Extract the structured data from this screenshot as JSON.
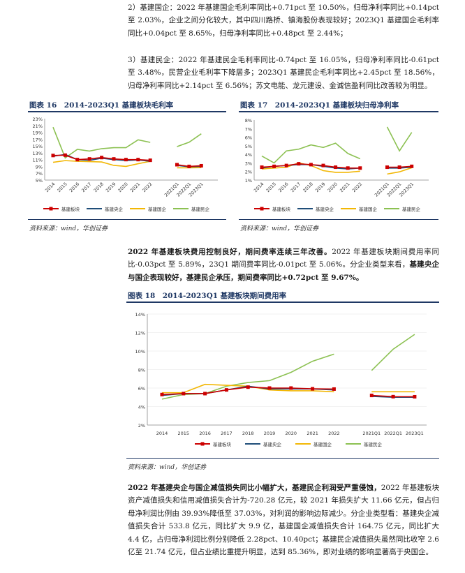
{
  "paragraphs": {
    "p1": "2）基建国企：2022 年基建国企毛利率同比+0.71pct 至 10.50%，归母净利率同比+0.14pct 至 2.03%，企业之间分化较大，其中四川路桥、镇海股份表现较好；2023Q1 基建国企毛利率同比+0.04pct 至 8.65%，归母净利率同比+0.48pct 至 2.44%；",
    "p2": "3）基建民企：2022 年基建民企毛利率同比-0.74pct 至 16.05%，归母净利率同比-0.61pct 至 3.48%，民营企业毛利率下降居多；2023Q1 基建民企毛利率同比+2.45pct 至 18.56%，归母净利率同比+2.14pct 至 6.56%；苏文电能、龙元建设、金诚信盈利同比改善较为明显。",
    "p3_bold": "2022 年基建板块费用控制良好，期间费率连续三年改善。",
    "p3_rest": "2022 年基建板块期间费用率同比-0.03pct 至 5.89%，23Q1 期间费率同比-0.01pct 至 5.06%。分企业类型来看，",
    "p3_bold2": "基建央企与国企表现较好，基建民企承压，期间费率同比+0.72pct 至 9.67%。",
    "p4_bold": "2022 年基建央企与国企减值损失同比小幅扩大，基建民企利润受严重侵蚀，",
    "p4_rest": "2022 年基建板块资产减值损失和信用减值损失合计为-720.28 亿元，较 2021 年损失扩大 11.66 亿元，但占归母净利润比例由 39.93%降低至 37.03%，对利润的影响边际减少。分企业类型看：基建央企减值损失合计 533.8 亿元，同比扩大 9.9 亿，基建国企减值损失合计 164.75 亿元，同比扩大 4.4 亿，占归母净利润比例分别降低 2.28pct、10.40pct；基建民企减值损失虽然同比收窄 2.6 亿至 21.74 亿元，但占业绩比重提升明显，达到 85.36%，即对业绩的影响显著高于央国企。"
  },
  "figures": {
    "f16_title": "图表 16　2014-2023Q1 基建板块毛利率",
    "f17_title": "图表 17　2014-2023Q1 基建板块归母净利率",
    "f18_title": "图表 18　2014-2023Q1 基建板块期间费用率",
    "source": "资料来源：wind，华创证券"
  },
  "colors": {
    "board": "#cc0000",
    "central": "#1f4e79",
    "state": "#f2b705",
    "private": "#8cc152",
    "title": "#1f3864"
  },
  "chart_data": [
    {
      "type": "line",
      "title": "图表 16　2014-2023Q1 基建板块毛利率",
      "categories": [
        "2014",
        "2015",
        "2016",
        "2017",
        "2018",
        "2019",
        "2020",
        "2021",
        "2022",
        "2021Q1",
        "2022Q1",
        "2023Q1"
      ],
      "ylim": [
        5,
        23
      ],
      "yticks": [
        "5%",
        "7%",
        "9%",
        "11%",
        "13%",
        "15%",
        "17%",
        "19%",
        "21%",
        "23%"
      ],
      "series": [
        {
          "name": "基建板块",
          "values": [
            12.2,
            12.3,
            11.0,
            11.2,
            11.6,
            11.2,
            11.0,
            11.0,
            10.8,
            9.5,
            9.0,
            9.2
          ]
        },
        {
          "name": "基建央企",
          "values": [
            12.0,
            12.5,
            11.0,
            10.8,
            11.4,
            11.0,
            10.7,
            10.9,
            10.5,
            9.3,
            8.9,
            9.0
          ]
        },
        {
          "name": "基建国企",
          "values": [
            10.2,
            10.7,
            10.5,
            10.4,
            10.3,
            9.3,
            9.0,
            9.8,
            10.5,
            8.6,
            8.6,
            8.65
          ]
        },
        {
          "name": "基建民企",
          "values": [
            20.5,
            11.5,
            14.0,
            13.5,
            14.2,
            14.5,
            14.5,
            16.8,
            16.05,
            14.8,
            16.1,
            18.56
          ]
        }
      ],
      "legend": [
        "基建板块",
        "基建央企",
        "基建国企",
        "基建民企"
      ]
    },
    {
      "type": "line",
      "title": "图表 17　2014-2023Q1 基建板块归母净利率",
      "categories": [
        "2014",
        "2015",
        "2016",
        "2017",
        "2018",
        "2019",
        "2020",
        "2021",
        "2022",
        "2021Q1",
        "2022Q1",
        "2023Q1"
      ],
      "ylim": [
        1,
        8
      ],
      "yticks": [
        "1%",
        "2%",
        "3%",
        "4%",
        "5%",
        "6%",
        "7%",
        "8%"
      ],
      "series": [
        {
          "name": "基建板块",
          "values": [
            2.5,
            2.6,
            2.7,
            2.9,
            2.8,
            2.7,
            2.5,
            2.4,
            2.4,
            2.5,
            2.5,
            2.6
          ]
        },
        {
          "name": "基建央企",
          "values": [
            2.4,
            2.6,
            2.7,
            2.8,
            2.8,
            2.6,
            2.4,
            2.3,
            2.4,
            2.4,
            2.4,
            2.5
          ]
        },
        {
          "name": "基建国企",
          "values": [
            2.3,
            2.4,
            2.5,
            3.0,
            2.7,
            2.1,
            1.9,
            1.9,
            2.03,
            1.7,
            1.96,
            2.44
          ]
        },
        {
          "name": "基建民企",
          "values": [
            3.8,
            3.0,
            4.4,
            4.6,
            5.1,
            4.8,
            5.3,
            4.1,
            3.48,
            7.2,
            4.4,
            6.56
          ]
        }
      ],
      "legend": [
        "基建板块",
        "基建央企",
        "基建国企",
        "基建民企"
      ]
    },
    {
      "type": "line",
      "title": "图表 18　2014-2023Q1 基建板块期间费用率",
      "categories": [
        "2014",
        "2015",
        "2016",
        "2017",
        "2018",
        "2019",
        "2020",
        "2021",
        "2022",
        "2021Q1",
        "2022Q1",
        "2023Q1"
      ],
      "ylim": [
        2,
        14
      ],
      "yticks": [
        "2%",
        "4%",
        "6%",
        "8%",
        "10%",
        "12%",
        "14%"
      ],
      "series": [
        {
          "name": "基建板块",
          "values": [
            5.3,
            5.4,
            5.4,
            5.8,
            6.1,
            6.0,
            6.0,
            5.92,
            5.89,
            5.2,
            5.07,
            5.06
          ]
        },
        {
          "name": "基建央企",
          "values": [
            5.2,
            5.4,
            5.4,
            5.8,
            6.2,
            5.9,
            5.9,
            5.9,
            5.8,
            5.1,
            5.0,
            5.0
          ]
        },
        {
          "name": "基建国企",
          "values": [
            5.5,
            5.5,
            6.4,
            6.3,
            6.2,
            5.8,
            5.7,
            5.7,
            5.6,
            5.6,
            5.6,
            5.6
          ]
        },
        {
          "name": "基建民企",
          "values": [
            4.8,
            5.3,
            5.4,
            6.2,
            6.6,
            6.8,
            7.7,
            8.9,
            9.67,
            7.9,
            10.2,
            11.8
          ]
        }
      ],
      "legend": [
        "基建板块",
        "基建央企",
        "基建国企",
        "基建民企"
      ]
    }
  ]
}
